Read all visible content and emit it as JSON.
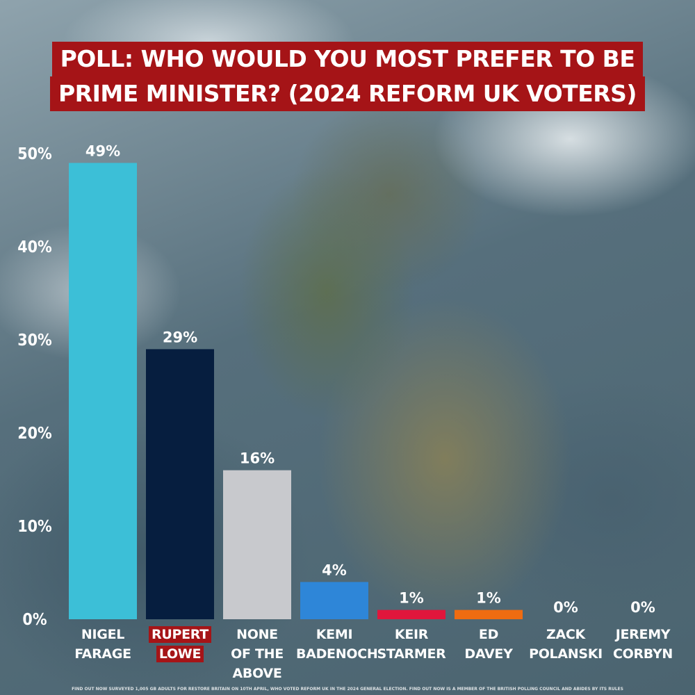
{
  "title_lines": [
    "POLL: WHO WOULD YOU MOST PREFER TO BE",
    "PRIME MINISTER? (2024 REFORM UK VOTERS)"
  ],
  "footnote": "FIND OUT NOW SURVEYED 1,005 GB ADULTS FOR RESTORE BRITAIN ON 10TH APRIL, WHO VOTED REFORM UK IN THE 2024 GENERAL ELECTION. FIND OUT NOW IS A MEMBER OF THE BRITISH POLLING COUNCIL AND ABIDES BY ITS RULES",
  "chart_data": {
    "type": "bar",
    "title": "POLL: WHO WOULD YOU MOST PREFER TO BE PRIME MINISTER? (2024 REFORM UK VOTERS)",
    "categories": [
      "NIGEL\nFARAGE",
      "RUPERT\nLOWE",
      "NONE\nOF THE\nABOVE",
      "KEMI\nBADENOCH",
      "KEIR\nSTARMER",
      "ED\nDAVEY",
      "ZACK\nPOLANSKI",
      "JEREMY\nCORBYN"
    ],
    "values": [
      49,
      29,
      16,
      4,
      1,
      1,
      0,
      0
    ],
    "value_labels": [
      "49%",
      "29%",
      "16%",
      "4%",
      "1%",
      "1%",
      "0%",
      "0%"
    ],
    "colors": [
      "#3cbfd7",
      "#061e3f",
      "#c8c9cd",
      "#2e86d8",
      "#e0163c",
      "#ef6c11",
      "#c8c9cd",
      "#c8c9cd"
    ],
    "highlight_category": 1,
    "highlight_color": "#a51417",
    "yticks": [
      "0%",
      "10%",
      "20%",
      "30%",
      "40%",
      "50%"
    ],
    "ylim": [
      0,
      50
    ],
    "xlabel": "",
    "ylabel": "",
    "grid": false,
    "legend": "none"
  }
}
